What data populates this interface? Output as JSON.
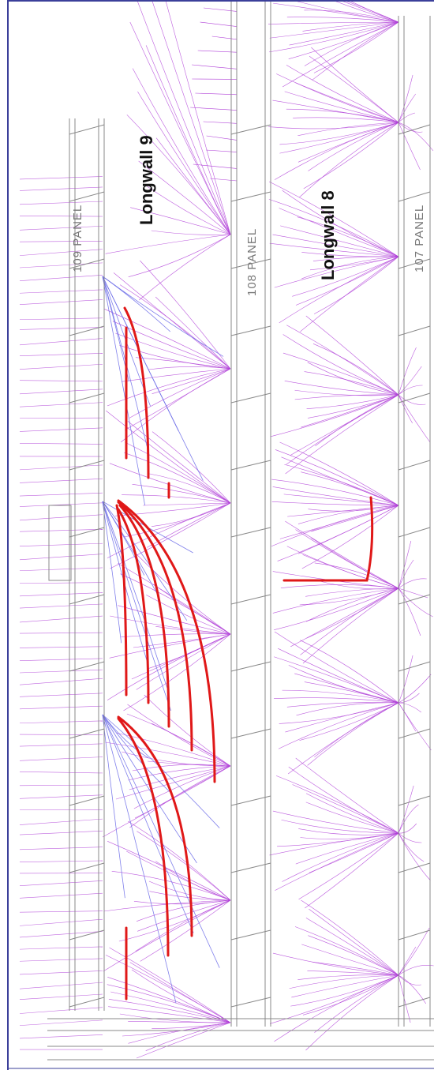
{
  "labels": {
    "longwall_9": "Longwall 9",
    "longwall_8": "Longwall 8",
    "panel_109": "109 PANEL",
    "panel_108": "108 PANEL",
    "panel_107": "107 PANEL"
  }
}
